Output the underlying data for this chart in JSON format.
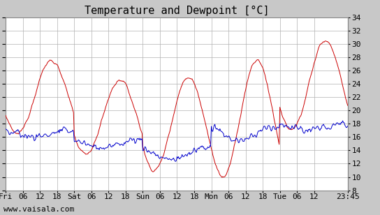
{
  "title": "Temperature and Dewpoint [°C]",
  "ylim": [
    8,
    34
  ],
  "yticks": [
    8,
    10,
    12,
    14,
    16,
    18,
    20,
    22,
    24,
    26,
    28,
    30,
    32,
    34
  ],
  "xtick_labels": [
    "Fri",
    "06",
    "12",
    "18",
    "Sat",
    "06",
    "12",
    "18",
    "Sun",
    "06",
    "12",
    "18",
    "Mon",
    "06",
    "12",
    "18",
    "Tue",
    "06",
    "12",
    "23:45"
  ],
  "xtick_pos": [
    0,
    6,
    12,
    18,
    24,
    30,
    36,
    42,
    48,
    54,
    60,
    66,
    72,
    78,
    84,
    90,
    96,
    102,
    108,
    119.75
  ],
  "xlim": [
    0,
    119.75
  ],
  "temp_color": "#cc0000",
  "dewp_color": "#0000cc",
  "background_color": "#c8c8c8",
  "plot_bg_color": "#ffffff",
  "watermark": "www.vaisala.com",
  "grid_color": "#b0b0b0",
  "title_fontsize": 11,
  "tick_fontsize": 8,
  "watermark_fontsize": 8,
  "temp_data": {
    "fri_start": 17.0,
    "fri_peak": 27.5,
    "fri_trough": 16.5,
    "sat_peak": 24.5,
    "sat_trough": 13.5,
    "sun_peak": 25.0,
    "sun_trough": 11.0,
    "mon_peak": 27.5,
    "mon_trough": 10.0,
    "tue_peak": 30.5,
    "tue_trough": 17.0
  },
  "dewp_data": {
    "fri_base": 16.5,
    "fri_var": 1.5,
    "sat_base": 15.0,
    "sat_var": 2.0,
    "sun_base": 13.5,
    "sun_var": 3.0,
    "mon_base": 16.5,
    "mon_var": 3.5,
    "tue_base": 17.5,
    "tue_var": 1.5
  }
}
